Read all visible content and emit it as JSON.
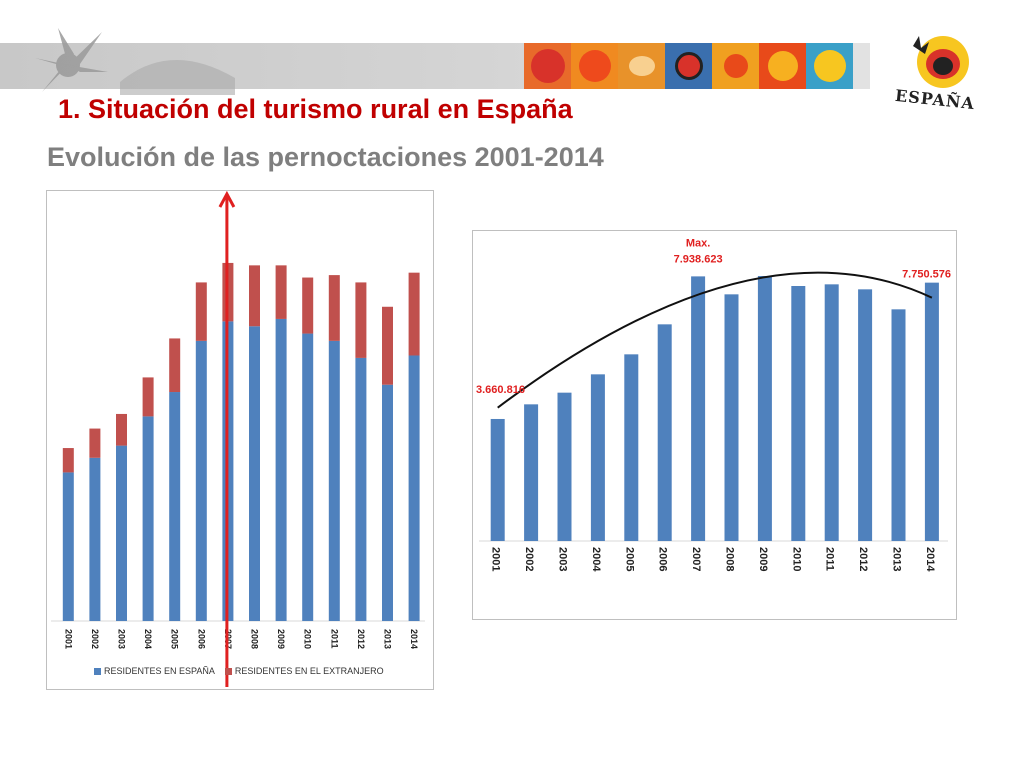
{
  "header": {
    "title": "1. Situación del turismo rural en España",
    "subtitle": "Evolución de las pernoctaciones 2001-2014",
    "logo_text": "ESPAÑA",
    "tile_colors": [
      "#d8322a",
      "#ee6a1c",
      "#e8922a",
      "#3a6fae",
      "#f0a020",
      "#e84a1a",
      "#f7c620"
    ]
  },
  "colors": {
    "blue": "#4f81bd",
    "red": "#c0504d",
    "arrow": "#e02020",
    "title": "#c00000",
    "subtitle": "#7f7f7f"
  },
  "chart_data": [
    {
      "type": "bar",
      "stacked": true,
      "categories": [
        "2001",
        "2002",
        "2003",
        "2004",
        "2005",
        "2006",
        "2007",
        "2008",
        "2009",
        "2010",
        "2011",
        "2012",
        "2013",
        "2014"
      ],
      "series": [
        {
          "name": "RESIDENTES EN ESPAÑA",
          "color": "#4f81bd",
          "values": [
            3.05,
            3.35,
            3.6,
            4.2,
            4.7,
            5.75,
            6.15,
            6.05,
            6.2,
            5.9,
            5.75,
            5.4,
            4.85,
            5.45
          ]
        },
        {
          "name": "RESIDENTES EN EL EXTRANJERO",
          "color": "#c0504d",
          "values": [
            0.5,
            0.6,
            0.65,
            0.8,
            1.1,
            1.2,
            1.2,
            1.25,
            1.1,
            1.15,
            1.35,
            1.55,
            1.6,
            1.7
          ]
        }
      ],
      "ylim": [
        0,
        7.8
      ],
      "grid": false,
      "legend": "bottom",
      "annotation": "vertical arrow at 2007"
    },
    {
      "type": "bar",
      "categories": [
        "2001",
        "2002",
        "2003",
        "2004",
        "2005",
        "2006",
        "2007",
        "2008",
        "2009",
        "2010",
        "2011",
        "2012",
        "2013",
        "2014"
      ],
      "values": [
        3660816,
        4100000,
        4450000,
        5000000,
        5600000,
        6500000,
        7938623,
        7400000,
        7950000,
        7650000,
        7700000,
        7550000,
        6950000,
        7750576
      ],
      "ylim": [
        0,
        8400000
      ],
      "grid": false,
      "trendline": "polynomial",
      "annotations": [
        {
          "label": "3.660.816",
          "category": "2001"
        },
        {
          "label": "Max.",
          "category": "2007"
        },
        {
          "label": "7.938.623",
          "category": "2007"
        },
        {
          "label": "7.750.576",
          "category": "2014"
        }
      ]
    }
  ]
}
